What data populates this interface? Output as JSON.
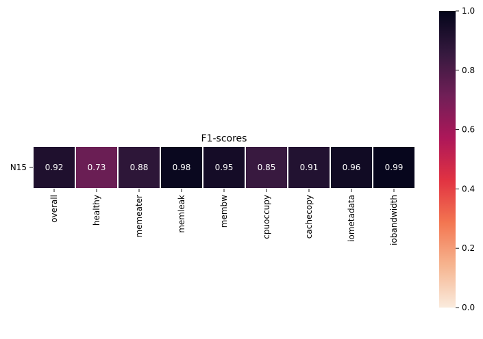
{
  "chart_data": {
    "type": "heatmap",
    "title": "F1-scores",
    "rows": [
      "N15"
    ],
    "columns": [
      "overall",
      "healthy",
      "memeater",
      "memleak",
      "membw",
      "cpuoccupy",
      "cachecopy",
      "iometadata",
      "iobandwidth"
    ],
    "values": [
      [
        0.92,
        0.73,
        0.88,
        0.98,
        0.95,
        0.85,
        0.91,
        0.96,
        0.99
      ]
    ],
    "value_labels": [
      [
        "0.92",
        "0.73",
        "0.88",
        "0.98",
        "0.95",
        "0.85",
        "0.91",
        "0.96",
        "0.99"
      ]
    ],
    "colorbar": {
      "range": [
        0.0,
        1.0
      ],
      "ticks": [
        0.0,
        0.2,
        0.4,
        0.6,
        0.8,
        1.0
      ],
      "tick_labels": [
        "0.0",
        "0.2",
        "0.4",
        "0.6",
        "0.8",
        "1.0"
      ],
      "colormap": "rocket_r",
      "colors": [
        "#faebdd",
        "#f6b48f",
        "#f37651",
        "#e13342",
        "#ad1759",
        "#701f57",
        "#35193e",
        "#03051a"
      ]
    },
    "cell_separator_color": "#ffffff",
    "annotation_color": "#ffffff"
  }
}
